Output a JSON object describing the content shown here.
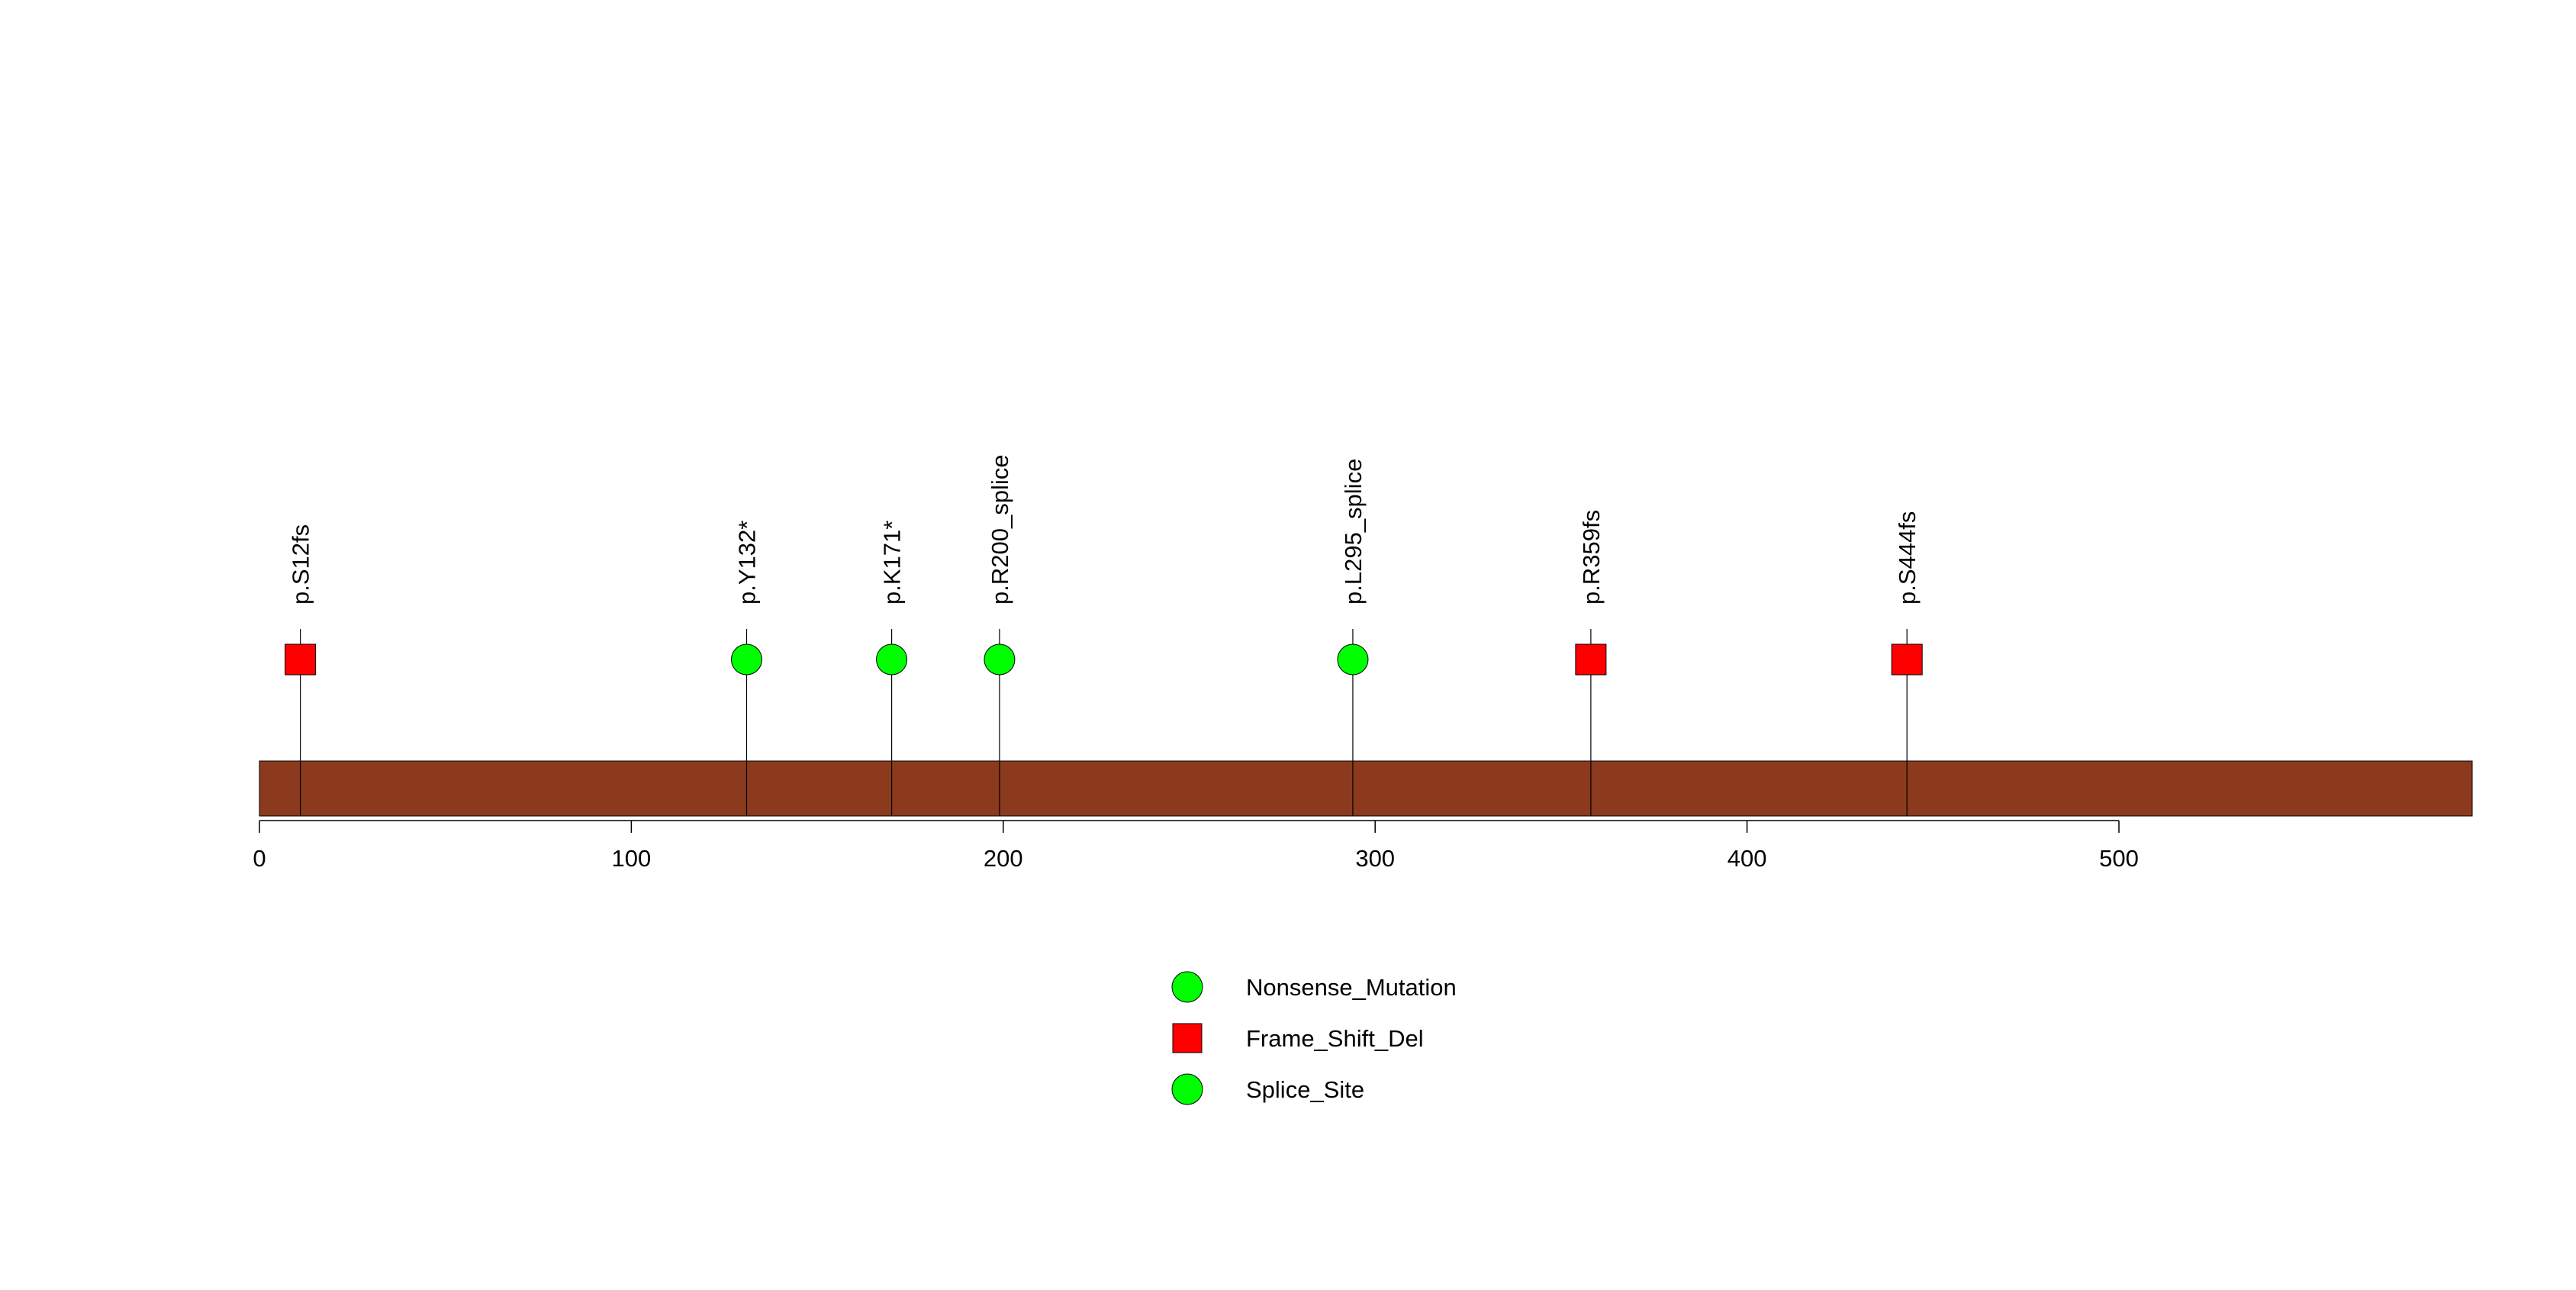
{
  "chart_data": {
    "type": "lollipop",
    "protein_length": 595,
    "xlim": [
      0,
      595
    ],
    "x_ticks": [
      0,
      100,
      200,
      300,
      400,
      500
    ],
    "x_tick_labels": [
      "0",
      "100",
      "200",
      "300",
      "400",
      "500"
    ],
    "backbone_color": "#8B3A1E",
    "mutations": [
      {
        "position": 11,
        "label": "p.S12fs",
        "type": "Frame_Shift_Del"
      },
      {
        "position": 131,
        "label": "p.Y132*",
        "type": "Nonsense_Mutation"
      },
      {
        "position": 170,
        "label": "p.K171*",
        "type": "Nonsense_Mutation"
      },
      {
        "position": 199,
        "label": "p.R200_splice",
        "type": "Splice_Site"
      },
      {
        "position": 294,
        "label": "p.L295_splice",
        "type": "Splice_Site"
      },
      {
        "position": 358,
        "label": "p.R359fs",
        "type": "Frame_Shift_Del"
      },
      {
        "position": 443,
        "label": "p.S444fs",
        "type": "Frame_Shift_Del"
      }
    ],
    "legend": [
      {
        "label": "Nonsense_Mutation",
        "shape": "circle",
        "color": "#00FF00"
      },
      {
        "label": "Frame_Shift_Del",
        "shape": "square",
        "color": "#FF0000"
      },
      {
        "label": "Splice_Site",
        "shape": "circle",
        "color": "#00FF00"
      }
    ]
  }
}
